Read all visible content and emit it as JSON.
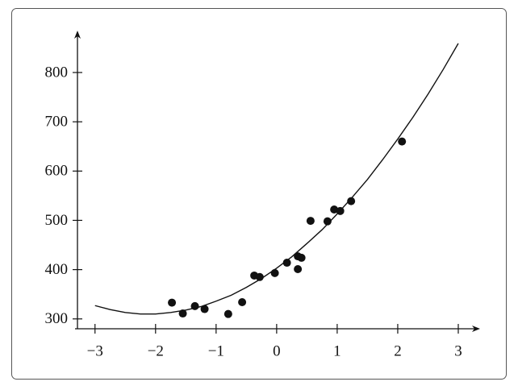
{
  "chart_data": {
    "type": "scatter",
    "xlim": [
      -3.33,
      3.36
    ],
    "ylim": [
      280,
      885
    ],
    "xticks": [
      {
        "value": -3,
        "label": "−3"
      },
      {
        "value": -2,
        "label": "−2"
      },
      {
        "value": -1,
        "label": "−1"
      },
      0,
      1,
      2,
      3
    ],
    "yticks": [
      300,
      400,
      500,
      600,
      700,
      800
    ],
    "series": [
      {
        "type": "scatter",
        "color": "#111111",
        "x": [
          -1.73,
          -1.55,
          -1.35,
          -1.19,
          -0.8,
          -0.57,
          -0.37,
          -0.28,
          -0.03,
          0.17,
          0.35,
          0.41,
          0.35,
          0.56,
          0.84,
          0.95,
          1.05,
          1.23,
          2.07
        ],
        "values": [
          333,
          311,
          326,
          320,
          310,
          334,
          388,
          385,
          393,
          414,
          427,
          424,
          401,
          499,
          498,
          522,
          519,
          539,
          660
        ]
      },
      {
        "type": "line",
        "color": "#111111",
        "x": [
          -3,
          -2.75,
          -2.5,
          -2.25,
          -2,
          -1.75,
          -1.5,
          -1.25,
          -1,
          -0.75,
          -0.5,
          -0.25,
          0,
          0.25,
          0.5,
          0.75,
          1,
          1.25,
          1.5,
          1.75,
          2,
          2.25,
          2.5,
          2.75,
          3
        ],
        "values": [
          327,
          319,
          313,
          310,
          310,
          313,
          318,
          325,
          336,
          348,
          364,
          382,
          403,
          426,
          453,
          481,
          513,
          547,
          583,
          623,
          665,
          709,
          756,
          806,
          859
        ]
      }
    ]
  }
}
